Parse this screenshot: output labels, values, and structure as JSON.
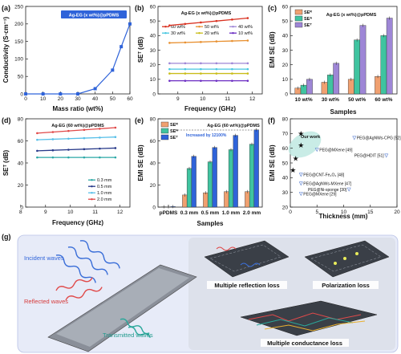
{
  "colors": {
    "blue": "#2f63d9",
    "cyan": "#45c6e0",
    "orange": "#f0a070",
    "green": "#3fc4a0",
    "purple": "#9e86d6",
    "red": "#e04848",
    "darkred": "#d9301f",
    "violet": "#6a2bc2",
    "lightblue": "#57bfe8",
    "yellowgreen": "#c9bd1a",
    "teal": "#2aa7a5",
    "navy": "#283a8a"
  },
  "panel_letters": [
    "(a)",
    "(b)",
    "(c)",
    "(d)",
    "(e)",
    "(f)",
    "(g)"
  ],
  "chart_data": [
    {
      "id": "a",
      "type": "line",
      "legend": "Ag-EG (x wt%)@pPDMS",
      "xlabel": "Mass ratio (wt%)",
      "ylabel": "Conductivity (S·cm⁻¹)",
      "xlim": [
        0,
        60
      ],
      "ylim": [
        0,
        250
      ],
      "xticks": [
        "0",
        "10",
        "20",
        "30",
        "40",
        "50",
        "60"
      ],
      "yticks": [
        "0",
        "50",
        "100",
        "150",
        "200",
        "250"
      ],
      "x": [
        0,
        10,
        20,
        30,
        40,
        50,
        55,
        60
      ],
      "y": [
        0,
        0,
        0,
        0,
        15,
        68,
        135,
        200
      ]
    },
    {
      "id": "b",
      "type": "line",
      "legend_title": "Ag-EG (x wt%)@pPDMS",
      "xlabel": "Frequency (GHz)",
      "ylabel": "SEᵀ (dB)",
      "xlim": [
        8.2,
        12.4
      ],
      "ylim": [
        0,
        60
      ],
      "xticks": [
        "9",
        "10",
        "11",
        "12"
      ],
      "yticks": [
        "0",
        "10",
        "20",
        "30",
        "40",
        "50",
        "60"
      ],
      "series": [
        {
          "name": "60 wt%",
          "color": "#d9301f",
          "values": [
            47,
            48,
            49,
            50,
            51,
            52
          ]
        },
        {
          "name": "50 wt%",
          "color": "#e89030",
          "values": [
            35,
            35.3,
            35.6,
            36,
            36.3,
            36.6
          ]
        },
        {
          "name": "40 wt%",
          "color": "#9e86d6",
          "values": [
            21,
            21,
            21,
            21,
            21,
            21
          ]
        },
        {
          "name": "30 wt%",
          "color": "#45c6e0",
          "values": [
            17,
            17,
            17,
            17,
            17,
            17
          ]
        },
        {
          "name": "20 wt%",
          "color": "#c9bd1a",
          "values": [
            14,
            14,
            14,
            14,
            14,
            14
          ]
        },
        {
          "name": "10 wt%",
          "color": "#6a2bc2",
          "values": [
            9,
            9,
            9,
            9,
            9,
            9
          ]
        }
      ]
    },
    {
      "id": "c",
      "type": "bar",
      "legend_title": "Ag-EG (x wt%)@pPDMS",
      "xlabel": "Samples",
      "ylabel": "EMI SE (dB)",
      "ylim": [
        0,
        60
      ],
      "yticks": [
        "0",
        "10",
        "20",
        "30",
        "40",
        "50",
        "60"
      ],
      "categories": [
        "10 wt%",
        "30 wt%",
        "50 wt%",
        "60 wt%"
      ],
      "series": [
        {
          "name": "SEᴿ",
          "color": "#f0a070",
          "values": [
            4,
            8,
            10,
            12
          ]
        },
        {
          "name": "SEᴬ",
          "color": "#3fc4a0",
          "values": [
            6,
            13,
            37,
            40
          ]
        },
        {
          "name": "SEᵀ",
          "color": "#9e86d6",
          "values": [
            10,
            21,
            47,
            52
          ]
        }
      ]
    },
    {
      "id": "d",
      "type": "line",
      "legend_title": "Ag-EG (60 wt%)@pPDMS",
      "xlabel": "Frequency (GHz)",
      "ylabel": "SEᵀ (dB)",
      "xlim": [
        8.2,
        12.4
      ],
      "ylim": [
        0,
        80
      ],
      "xticks": [
        "8",
        "9",
        "10",
        "11",
        "12"
      ],
      "yticks": [
        "0",
        "20",
        "40",
        "60",
        "80"
      ],
      "series": [
        {
          "name": "0.3 mm",
          "color": "#2aa7a5",
          "values": [
            45,
            45,
            45,
            45,
            45,
            45
          ]
        },
        {
          "name": "0.5 mm",
          "color": "#283a8a",
          "values": [
            51,
            51.5,
            52,
            52.5,
            53,
            53.5
          ]
        },
        {
          "name": "1.0 mm",
          "color": "#57bfe8",
          "values": [
            61,
            61.5,
            62,
            62.5,
            63,
            63.5
          ]
        },
        {
          "name": "2.0 mm",
          "color": "#e04848",
          "values": [
            67,
            68,
            69,
            70,
            71,
            72
          ]
        }
      ]
    },
    {
      "id": "e",
      "type": "bar",
      "legend_title": "Ag-EG (60 wt%)@pPDMS",
      "annotation": "Increased by 12100%",
      "xlabel": "Samples",
      "ylabel": "EMI SE (dB)",
      "ylim": [
        0,
        80
      ],
      "yticks": [
        "0",
        "20",
        "40",
        "60",
        "80"
      ],
      "categories": [
        "pPDMS",
        "0.3 mm",
        "0.5 mm",
        "1.0 mm",
        "2.0 mm"
      ],
      "series": [
        {
          "name": "SEᴿ",
          "color": "#f0a070",
          "values": [
            0.3,
            11,
            13,
            14,
            14
          ]
        },
        {
          "name": "SEᴬ",
          "color": "#3fc4a0",
          "values": [
            0.2,
            35,
            41,
            52,
            57
          ]
        },
        {
          "name": "SEᵀ",
          "color": "#2f63d9",
          "values": [
            0.5,
            46,
            54,
            65,
            70
          ]
        }
      ]
    },
    {
      "id": "f",
      "type": "scatter",
      "xlabel": "Thickness (mm)",
      "ylabel": "EMI SE (dB)",
      "xlim": [
        0,
        20
      ],
      "ylim": [
        20,
        80
      ],
      "xticks": [
        "0",
        "5",
        "10",
        "15",
        "20"
      ],
      "yticks": [
        "20",
        "30",
        "40",
        "50",
        "60",
        "70",
        "80"
      ],
      "our_work_label": "Our work",
      "our_work": [
        [
          0.5,
          45
        ],
        [
          1,
          53
        ],
        [
          2,
          62
        ],
        [
          2,
          70
        ]
      ],
      "refs": [
        {
          "label": "PEG@AgNWs-CPG [52]",
          "x": 12,
          "y": 67
        },
        {
          "label": "PEG@MXene [49]",
          "x": 5,
          "y": 59
        },
        {
          "label": "PEG@HDIT [51]",
          "x": 18,
          "y": 55
        },
        {
          "label": "PEG@CNT-Fe₃O₄ [48]",
          "x": 2,
          "y": 42
        },
        {
          "label": "PEG@AgNWs-MXene [47]",
          "x": 2,
          "y": 36
        },
        {
          "label": "PEG@MXene [29]",
          "x": 2,
          "y": 29
        },
        {
          "label": "PEG@Ni-sponge [30]",
          "x": 11,
          "y": 32
        }
      ]
    }
  ],
  "schematic": {
    "incident": "Incident waves",
    "reflected": "Reflected waves",
    "transmitted": "Transmitted waves",
    "reflection_loss": "Multiple reflection loss",
    "polarization_loss": "Polarization loss",
    "conductance_loss": "Multiple conductance loss"
  }
}
